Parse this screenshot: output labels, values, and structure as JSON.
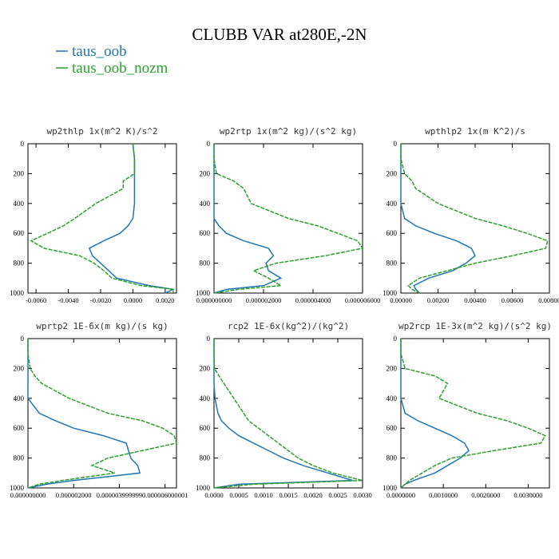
{
  "title": "CLUBB VAR at280E,-2N",
  "legend": [
    {
      "name": "taus_oob",
      "color": "#1f77b4"
    },
    {
      "name": "taus_oob_nozm",
      "color": "#2ca02c"
    }
  ],
  "chart_data": [
    {
      "type": "line",
      "title": "wp2thlp   1x(m^2 K)/s^2",
      "y": [
        0,
        100,
        200,
        250,
        300,
        400,
        500,
        550,
        600,
        650,
        700,
        750,
        800,
        850,
        900,
        950,
        975,
        1000
      ],
      "series": [
        {
          "values": [
            0.0,
            0.0001,
            0.0001,
            0.0001,
            0.0001,
            0.0001,
            0.0,
            -0.0003,
            -0.0008,
            -0.0018,
            -0.0027,
            -0.0025,
            -0.002,
            -0.0015,
            -0.001,
            0.001,
            0.0025,
            0.002
          ]
        },
        {
          "values": [
            0.0,
            0.0001,
            0.0001,
            -0.0006,
            -0.0006,
            -0.0023,
            -0.0036,
            -0.0043,
            -0.0053,
            -0.0063,
            -0.0055,
            -0.0033,
            -0.0024,
            -0.0018,
            -0.0013,
            0.0005,
            0.0025,
            0.0025
          ]
        }
      ],
      "xlim": [
        -0.0065,
        0.0027
      ],
      "xticks": [
        {
          "value": -0.006,
          "label": "-0.0060"
        },
        {
          "value": -0.004,
          "label": "-0.0040"
        },
        {
          "value": -0.002,
          "label": "-0.0020"
        },
        {
          "value": 0,
          "label": "0.0000"
        },
        {
          "value": 0.002,
          "label": "0.0020"
        }
      ],
      "ylim": [
        0,
        1000
      ],
      "yticks": [
        0,
        200,
        400,
        600,
        800,
        1000
      ]
    },
    {
      "type": "line",
      "title": "wp2rtp   1x(m^2 kg)/(s^2 kg)",
      "y": [
        0,
        100,
        200,
        250,
        300,
        400,
        500,
        550,
        600,
        650,
        700,
        750,
        800,
        850,
        900,
        950,
        975,
        1000
      ],
      "series": [
        {
          "values": [
            0,
            0,
            0,
            0,
            0,
            0,
            0,
            2e-07,
            5e-07,
            1.2e-06,
            2.2e-06,
            2.4e-06,
            2.1e-06,
            2.2e-06,
            2.7e-06,
            2e-06,
            5e-07,
            0
          ]
        },
        {
          "values": [
            0,
            0,
            1e-07,
            8e-07,
            1.2e-06,
            1.5e-06,
            3e-06,
            4.2e-06,
            5e-06,
            5.8e-06,
            6e-06,
            4.5e-06,
            2.5e-06,
            1.6e-06,
            2.2e-06,
            2.7e-06,
            1e-06,
            0
          ]
        }
      ],
      "xlim": [
        0,
        6e-06
      ],
      "xticks": [
        {
          "value": 0,
          "label": "0.000000000"
        },
        {
          "value": 2e-06,
          "label": "0.000002000"
        },
        {
          "value": 4e-06,
          "label": "0.000004000"
        },
        {
          "value": 6e-06,
          "label": "0.000006000"
        }
      ],
      "ylim": [
        0,
        1000
      ],
      "yticks": [
        0,
        200,
        400,
        600,
        800,
        1000
      ]
    },
    {
      "type": "line",
      "title": "wpthlp2   1x(m K^2)/s",
      "y": [
        0,
        100,
        200,
        250,
        300,
        400,
        500,
        550,
        600,
        650,
        700,
        750,
        800,
        850,
        900,
        950,
        975,
        1000
      ],
      "series": [
        {
          "values": [
            0,
            0,
            0,
            0,
            0,
            0,
            0.0002,
            0.0008,
            0.0018,
            0.003,
            0.0038,
            0.004,
            0.0035,
            0.0028,
            0.0015,
            0.0007,
            0.0008,
            0.001
          ]
        },
        {
          "values": [
            0,
            0,
            0.0002,
            0.0006,
            0.0008,
            0.002,
            0.004,
            0.0055,
            0.0068,
            0.0079,
            0.0078,
            0.006,
            0.004,
            0.0025,
            0.001,
            0.0004,
            0.0006,
            0.001
          ]
        }
      ],
      "xlim": [
        0,
        0.008
      ],
      "xticks": [
        {
          "value": 0,
          "label": "0.00000"
        },
        {
          "value": 0.002,
          "label": "0.00200"
        },
        {
          "value": 0.004,
          "label": "0.00400"
        },
        {
          "value": 0.006,
          "label": "0.00600"
        },
        {
          "value": 0.008,
          "label": "0.00800"
        }
      ],
      "ylim": [
        0,
        1000
      ],
      "yticks": [
        0,
        200,
        400,
        600,
        800,
        1000
      ]
    },
    {
      "type": "line",
      "title": "wprtp2   1E-6x(m kg)/(s kg)",
      "y": [
        0,
        100,
        200,
        250,
        300,
        400,
        500,
        550,
        600,
        650,
        700,
        750,
        800,
        850,
        900,
        950,
        975,
        1000
      ],
      "series": [
        {
          "values": [
            0,
            0,
            0,
            0,
            0,
            0,
            5e-07,
            1.2e-06,
            2e-06,
            3.3e-06,
            4.3e-06,
            4.4e-06,
            4.5e-06,
            4.8e-06,
            4.9e-06,
            2e-06,
            8e-07,
            0
          ]
        },
        {
          "values": [
            0,
            0,
            1e-07,
            3e-07,
            6e-07,
            1.8e-06,
            3.5e-06,
            5e-06,
            5.9e-06,
            6.4e-06,
            6.5e-06,
            5e-06,
            3.5e-06,
            2.8e-06,
            3.8e-06,
            1.5e-06,
            5e-07,
            0
          ]
        }
      ],
      "xlim": [
        0,
        6.5e-06
      ],
      "xticks": [
        {
          "value": 0,
          "label": "0.000000000"
        },
        {
          "value": 2e-06,
          "label": "0.000002000"
        },
        {
          "value": 4e-06,
          "label": "0.000003999999"
        },
        {
          "value": 6e-06,
          "label": "0.000006000001"
        }
      ],
      "ylim": [
        0,
        1000
      ],
      "yticks": [
        0,
        200,
        400,
        600,
        800,
        1000
      ]
    },
    {
      "type": "line",
      "title": "rcp2   1E-6x(kg^2)/(kg^2)",
      "y": [
        0,
        100,
        200,
        250,
        300,
        400,
        500,
        550,
        600,
        650,
        700,
        750,
        800,
        850,
        900,
        950,
        975,
        1000
      ],
      "series": [
        {
          "values": [
            0,
            0,
            0,
            0,
            0,
            2e-05,
            8e-05,
            0.00015,
            0.0003,
            0.0005,
            0.0008,
            0.0011,
            0.0014,
            0.0018,
            0.0023,
            0.0028,
            0.0005,
            0
          ]
        },
        {
          "values": [
            0,
            0,
            1e-05,
            0.0001,
            0.0002,
            0.0004,
            0.0006,
            0.0007,
            0.0009,
            0.0011,
            0.0013,
            0.0015,
            0.0017,
            0.002,
            0.0024,
            0.003,
            0.0008,
            0
          ]
        }
      ],
      "xlim": [
        0,
        0.003
      ],
      "xticks": [
        {
          "value": 0,
          "label": "0.0000"
        },
        {
          "value": 0.0005,
          "label": "0.0005"
        },
        {
          "value": 0.001,
          "label": "0.0010"
        },
        {
          "value": 0.0015,
          "label": "0.0015"
        },
        {
          "value": 0.002,
          "label": "0.0020"
        },
        {
          "value": 0.0025,
          "label": "0.0025"
        },
        {
          "value": 0.003,
          "label": "0.0030"
        }
      ],
      "ylim": [
        0,
        1000
      ],
      "yticks": [
        0,
        200,
        400,
        600,
        800,
        1000
      ]
    },
    {
      "type": "line",
      "title": "wp2rcp   1E-3x(m^2 kg)/(s^2 kg)",
      "y": [
        0,
        100,
        200,
        250,
        300,
        400,
        500,
        550,
        600,
        650,
        700,
        750,
        800,
        850,
        900,
        950,
        975,
        1000
      ],
      "series": [
        {
          "values": [
            0,
            0,
            0,
            0,
            0,
            0,
            0.0001,
            0.0004,
            0.0008,
            0.0012,
            0.0015,
            0.0016,
            0.0014,
            0.0011,
            0.0008,
            0.0003,
            0.0001,
            0
          ]
        },
        {
          "values": [
            0,
            0,
            0.0001,
            0.0008,
            0.0011,
            0.0009,
            0.0018,
            0.0025,
            0.003,
            0.0034,
            0.0033,
            0.0022,
            0.0012,
            0.0008,
            0.0005,
            0.0002,
            0.0001,
            0
          ]
        }
      ],
      "xlim": [
        0,
        0.0035
      ],
      "xticks": [
        {
          "value": 0,
          "label": "0.0000000"
        },
        {
          "value": 0.001,
          "label": "0.0010000"
        },
        {
          "value": 0.002,
          "label": "0.0020000"
        },
        {
          "value": 0.003,
          "label": "0.0030000"
        }
      ],
      "ylim": [
        0,
        1000
      ],
      "yticks": [
        0,
        200,
        400,
        600,
        800,
        1000
      ]
    }
  ]
}
